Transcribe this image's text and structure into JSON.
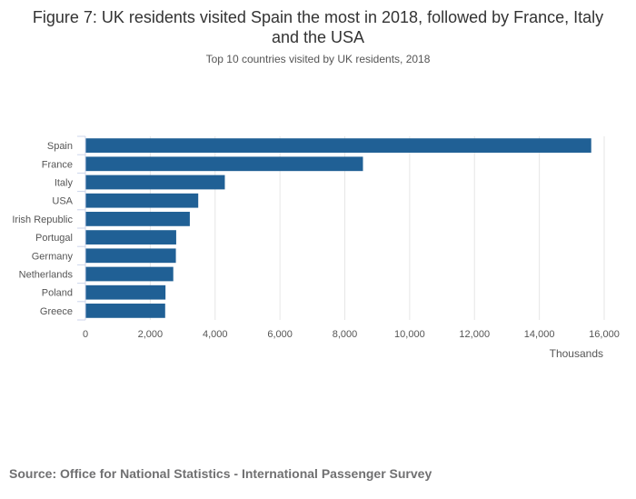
{
  "header": {
    "title": "Figure 7: UK residents visited Spain the most in 2018, followed by France, Italy and the USA",
    "subtitle": "Top 10 countries visited by UK residents, 2018"
  },
  "footer": {
    "source": "Source: Office for National Statistics - International Passenger Survey"
  },
  "colors": {
    "bar": "#206095",
    "grid": "#e6e6e6",
    "axis": "#ccd6eb",
    "label": "#555555"
  },
  "chart_data": {
    "type": "bar",
    "orientation": "horizontal",
    "title": "Figure 7: UK residents visited Spain the most in 2018, followed by France, Italy and the USA",
    "subtitle": "Top 10 countries visited by UK residents, 2018",
    "categories": [
      "Spain",
      "France",
      "Italy",
      "USA",
      "Irish Republic",
      "Portugal",
      "Germany",
      "Netherlands",
      "Poland",
      "Greece"
    ],
    "series": [
      {
        "name": "Visits (thousands)",
        "values": [
          15600,
          8560,
          4300,
          3480,
          3220,
          2800,
          2790,
          2710,
          2470,
          2460
        ]
      }
    ],
    "xlabel": "Thousands",
    "ylabel": "",
    "xlim": [
      0,
      16000
    ],
    "xticks": [
      0,
      2000,
      4000,
      6000,
      8000,
      10000,
      12000,
      14000,
      16000
    ],
    "xtick_labels": [
      "0",
      "2,000",
      "4,000",
      "6,000",
      "8,000",
      "10,000",
      "12,000",
      "14,000",
      "16,000"
    ],
    "grid": true,
    "legend": "none"
  }
}
